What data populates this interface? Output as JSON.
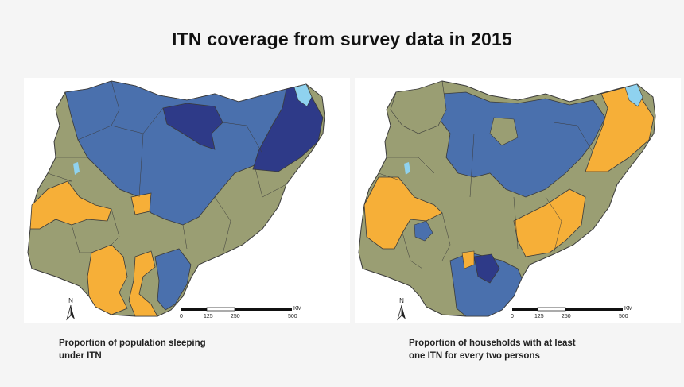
{
  "title": "ITN coverage from survey data in 2015",
  "maps": [
    {
      "caption_line1": "Proportion of population sleeping",
      "caption_line2": "under ITN"
    },
    {
      "caption_line1": "Proportion of households with at least",
      "caption_line2": "one ITN for every two persons"
    }
  ],
  "north_label": "N",
  "scale": {
    "unit": "KM",
    "ticks": [
      "0",
      "125",
      "250",
      "500"
    ]
  },
  "colors": {
    "background": "#f5f5f5",
    "olive": "#9a9e73",
    "mid_blue": "#4a70ad",
    "dark_blue": "#2e3a88",
    "orange": "#f6af38",
    "water": "#8fd2ef",
    "border": "#3a3a3a"
  }
}
